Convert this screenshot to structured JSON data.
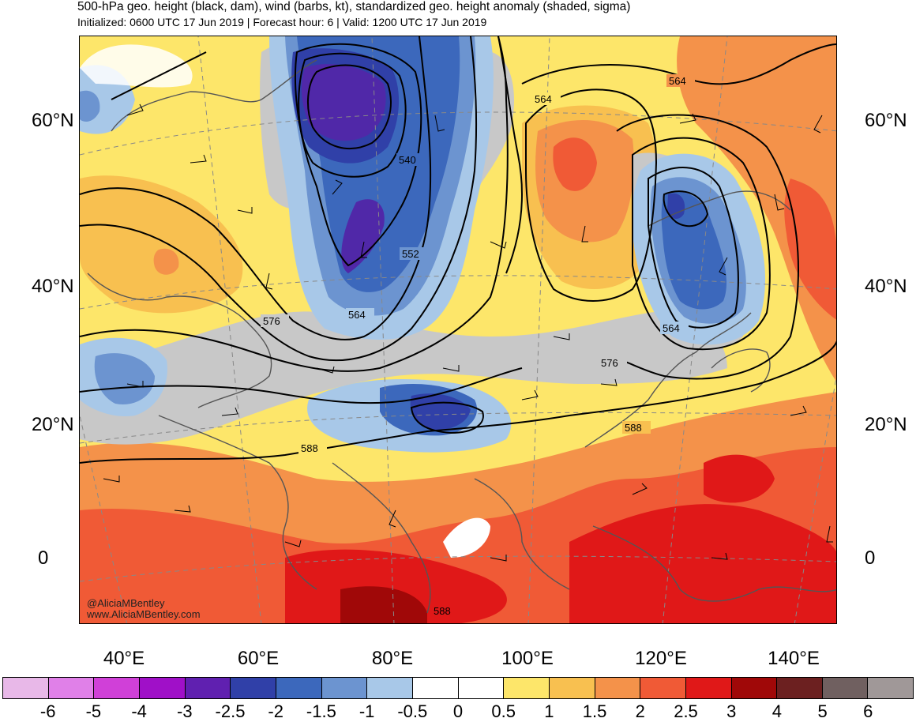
{
  "title": "500-hPa geo. height (black, dam), wind (barbs, kt), standardized geo. height anomaly (shaded, sigma)",
  "subtitle": "Initialized: 0600 UTC 17 Jun 2019 | Forecast hour: 6 | Valid: 1200 UTC 17 Jun 2019",
  "credit": {
    "handle": "@AliciaMBentley",
    "site": "www.AliciaMBentley.com"
  },
  "lat_labels": [
    "60°N",
    "40°N",
    "20°N",
    "0"
  ],
  "lon_labels": [
    "40°E",
    "60°E",
    "80°E",
    "100°E",
    "120°E",
    "140°E"
  ],
  "contour_labels": [
    "564",
    "564",
    "540",
    "552",
    "564",
    "576",
    "564",
    "576",
    "588",
    "588",
    "588"
  ],
  "colorbar": {
    "labels": [
      "-6",
      "-5",
      "-4",
      "-3",
      "-2.5",
      "-2",
      "-1.5",
      "-1",
      "-0.5",
      "0",
      "0.5",
      "1",
      "1.5",
      "2",
      "2.5",
      "3",
      "4",
      "5",
      "6"
    ],
    "colors": [
      "#e8b8e8",
      "#e080e8",
      "#d040d8",
      "#a010c8",
      "#6020b0",
      "#3040a8",
      "#3c68bc",
      "#6c94d0",
      "#a8c8e8",
      "#ffffff",
      "#ffffff",
      "#fde66a",
      "#f8c050",
      "#f4924a",
      "#f05a36",
      "#e01818",
      "#a00808",
      "#6c2020",
      "#706060",
      "#a09898"
    ]
  },
  "legend_colors": {
    "neg_25": "#5028a8",
    "neg_20": "#3040a8",
    "neg_15": "#3c68bc",
    "neg_10": "#6c94d0",
    "neg_05": "#a8c8e8",
    "gray": "#c8c8c8",
    "pos_05": "#fde66a",
    "pos_10": "#f8c050",
    "pos_15": "#f4924a",
    "pos_20": "#f05a36",
    "pos_25": "#e01818",
    "pos_30": "#a00808"
  }
}
